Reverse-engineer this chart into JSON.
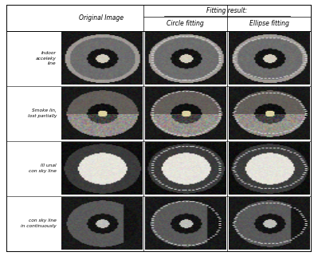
{
  "col_header_1": "Original Image",
  "col_header_2": "Fitting result:",
  "col_header_2a": "Circle fitting",
  "col_header_2b": "Ellipse fitting",
  "row_labels": [
    "Indoor\nacceleky\nline",
    "Smoke lin,\nlost partially",
    "Ill unal\ncon sky line",
    "con sky line\nin continuously"
  ],
  "n_rows": 4,
  "n_cols": 3,
  "bg_color": "#ffffff",
  "header_fontsize": 5.5,
  "row_label_fontsize": 4.2,
  "fig_width": 3.94,
  "fig_height": 3.21,
  "table_lw": 0.7
}
